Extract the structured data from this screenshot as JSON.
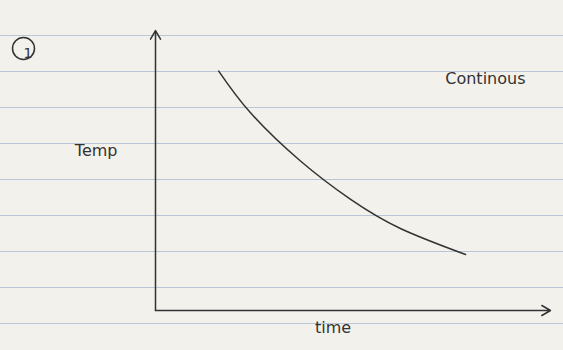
{
  "chart_data": {
    "type": "line",
    "panel_label": "1",
    "x_label": "time",
    "y_label": "Temp",
    "annotations": [
      "Continous"
    ],
    "x": [
      1.6,
      2.4,
      3.67,
      4.94,
      6.2,
      7.85
    ],
    "values": [
      8.55,
      7.07,
      5.34,
      3.97,
      2.93,
      2.0
    ],
    "xlim": [
      0,
      10
    ],
    "ylim": [
      0,
      10
    ],
    "tick_labels": false,
    "grid": false,
    "color": "#333333",
    "line_style": "solid"
  }
}
